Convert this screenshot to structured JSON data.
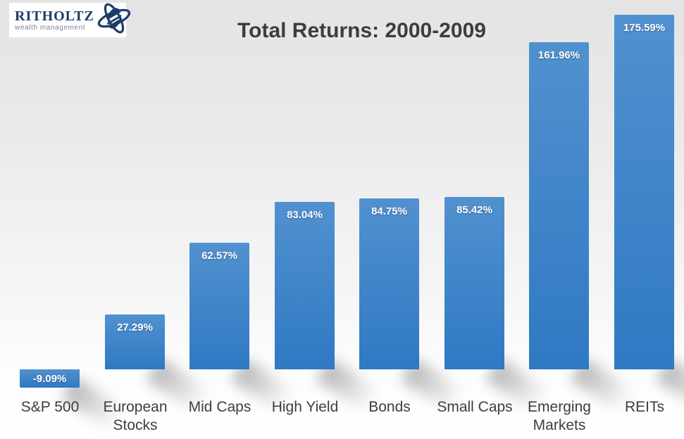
{
  "logo": {
    "brand": "RITHOLTZ",
    "tagline": "wealth management",
    "brand_color": "#1d3d67"
  },
  "chart_data": {
    "type": "bar",
    "title": "Total Returns: 2000-2009",
    "categories": [
      "S&P 500",
      "European Stocks",
      "Mid Caps",
      "High Yield",
      "Bonds",
      "Small Caps",
      "Emerging Markets",
      "REITs"
    ],
    "values": [
      -9.09,
      27.29,
      62.57,
      83.04,
      84.75,
      85.42,
      161.96,
      175.59
    ],
    "value_labels": [
      "-9.09%",
      "27.29%",
      "62.57%",
      "83.04%",
      "84.75%",
      "85.42%",
      "161.96%",
      "175.59%"
    ],
    "xlabel": "",
    "ylabel": "",
    "ylim": [
      -10,
      176
    ],
    "grid": false,
    "legend": false,
    "bar_color_top": "#5191cf",
    "bar_color_bottom": "#2f79c3",
    "value_label_color": "#ffffff",
    "category_label_color": "#3e3e3e",
    "title_color": "#3d3d3d",
    "background_top": "#e4e4e4",
    "background_bottom": "#ffffff"
  }
}
